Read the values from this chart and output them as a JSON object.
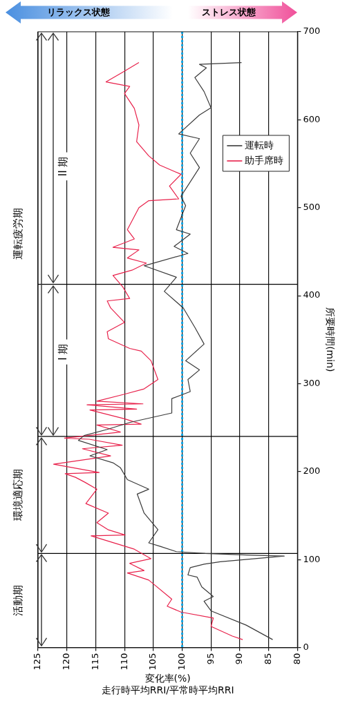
{
  "chart_data": {
    "type": "line",
    "orientation": "horizontal",
    "xlabel": "変化率(%)\n走行時平均RRI/平常時平均RRI",
    "ylabel": "所要時間(min)",
    "xlim": [
      125,
      80
    ],
    "xticks": [
      125,
      120,
      115,
      110,
      105,
      100,
      95,
      90,
      85,
      80
    ],
    "ylim": [
      0,
      700
    ],
    "yticks": [
      0,
      100,
      200,
      300,
      400,
      500,
      600,
      700
    ],
    "grid": "x",
    "legend": "top right",
    "marker": "none",
    "line_style": "solid",
    "series": [
      {
        "name": "運転時",
        "color": "#3a3a3a",
        "x": [
          9,
          25.5,
          41.7,
          52.6,
          58,
          69,
          80,
          82.5,
          90.8,
          94.8,
          97.5,
          104,
          105,
          107,
          109,
          115,
          119,
          134,
          152.8,
          174.5,
          180,
          190.8,
          204.3,
          210,
          217.9,
          225,
          235.5,
          241,
          248,
          256,
          266.6,
          283,
          291,
          304.7,
          315.6,
          326,
          345,
          364,
          386,
          404.9,
          421,
          434,
          448,
          456,
          470,
          475,
          502.4,
          513,
          545.6,
          562,
          578.5,
          583.9,
          605.4,
          613.6,
          632,
          648,
          659,
          663,
          665
        ],
        "values": [
          84.3,
          88.9,
          95,
          96.2,
          94.6,
          96.6,
          97.4,
          99,
          98.6,
          96.2,
          93.4,
          82.3,
          88,
          96,
          101,
          103.8,
          105.8,
          104.2,
          106.6,
          107.8,
          105.8,
          109.5,
          110.7,
          112,
          116,
          113,
          118,
          117,
          113,
          109,
          101.8,
          101.8,
          98.6,
          99,
          97,
          99.4,
          96.2,
          97.8,
          99.8,
          103.1,
          101,
          106.6,
          99,
          101.4,
          98.6,
          101,
          99.4,
          100.2,
          97,
          98.6,
          97,
          100.6,
          97,
          95,
          96.2,
          97.8,
          95.8,
          97,
          89.7
        ]
      },
      {
        "name": "助手席時",
        "color": "#e8204a",
        "x": [
          9,
          13,
          24,
          33.5,
          40.3,
          47,
          55,
          76.7,
          84.8,
          87.5,
          95.7,
          101,
          111.8,
          127,
          128,
          133.8,
          142,
          152.8,
          163.7,
          180,
          188,
          193.5,
          197.6,
          199,
          208.4,
          217.9,
          226,
          230,
          236.8,
          238,
          245,
          253,
          254,
          260,
          270,
          271,
          276,
          277,
          280,
          288,
          294,
          304.7,
          326,
          337,
          340,
          351,
          359,
          369.6,
          386,
          394,
          396.8,
          410,
          423,
          429,
          437,
          442.8,
          452,
          455,
          464.5,
          475,
          500,
          508,
          510,
          524.6,
          538,
          548.5,
          559,
          575,
          594,
          613,
          629.8,
          637.9,
          643,
          654,
          665
        ],
        "values": [
          89.5,
          91.3,
          95,
          94.6,
          100.2,
          102.6,
          101.8,
          105.8,
          109.5,
          106.6,
          109.1,
          105.4,
          108.3,
          115.8,
          109.9,
          112.8,
          114.8,
          112.8,
          116.7,
          114.8,
          116.9,
          118.5,
          120.3,
          114.4,
          122.3,
          112.4,
          117.3,
          110.4,
          116.1,
          120.4,
          110.7,
          114.8,
          107.1,
          110,
          116,
          107.9,
          116.5,
          106.8,
          114.8,
          110,
          106.6,
          104.2,
          105.4,
          107.1,
          109.1,
          112.8,
          113,
          110,
          112.4,
          113,
          109.1,
          110.3,
          112,
          108.7,
          106.2,
          109.5,
          107.5,
          112,
          108.3,
          109.5,
          107.5,
          105.8,
          100.6,
          102.2,
          100.2,
          103.9,
          105.8,
          107.9,
          107.5,
          108.3,
          110,
          109.1,
          113.2,
          110.3,
          107.5
        ]
      }
    ],
    "ref_lines": [
      {
        "axis": "y",
        "value": 107,
        "color": "#000000",
        "line_style": "solid"
      },
      {
        "axis": "y",
        "value": 240,
        "color": "#000000",
        "line_style": "solid"
      },
      {
        "axis": "y",
        "value": 413,
        "color": "#000000",
        "line_style": "solid"
      },
      {
        "axis": "x",
        "value": 100,
        "color": "#10a8e8",
        "line_style": "dotted"
      }
    ],
    "annotations": [
      "活動期",
      "環境適応期",
      "運転疲労期",
      {
        "text": "I 期",
        "x": 120.6,
        "y": 336
      },
      {
        "text": "II 期",
        "x": 120.6,
        "y": 547
      },
      "リラックス状態",
      "ストレス状態"
    ]
  }
}
